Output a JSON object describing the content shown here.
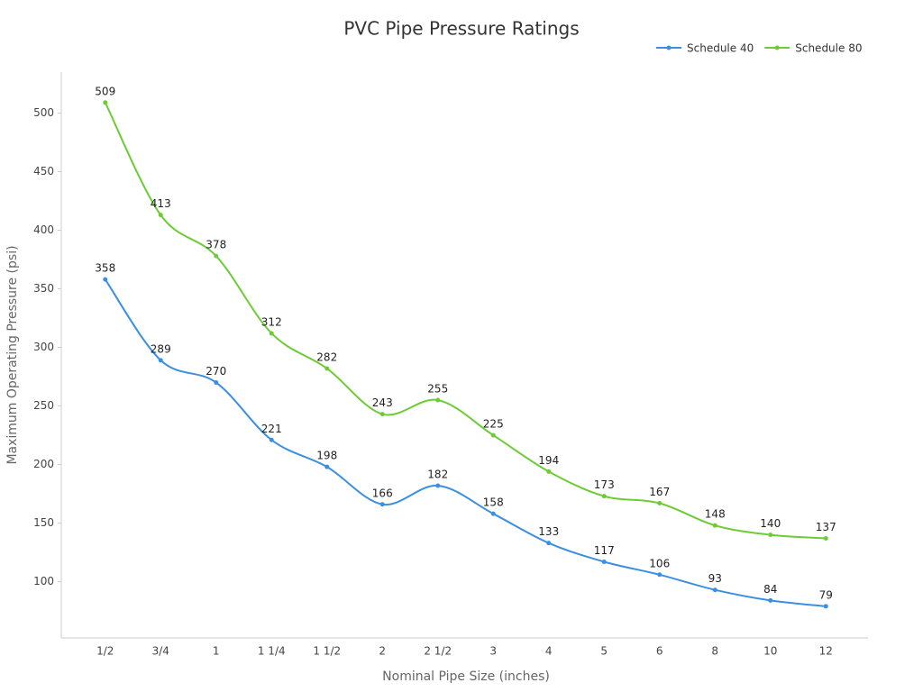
{
  "chart_data": {
    "type": "line",
    "title": "PVC Pipe Pressure Ratings",
    "x_label": "Nominal Pipe Size (inches)",
    "y_label": "Maximum Operating Pressure (psi)",
    "categories": [
      "1/2",
      "3/4",
      "1",
      "1 1/4",
      "1 1/2",
      "2",
      "2 1/2",
      "3",
      "4",
      "5",
      "6",
      "8",
      "10",
      "12"
    ],
    "series": [
      {
        "name": "Schedule 40",
        "color": "#3b8fe3",
        "values": [
          358,
          289,
          270,
          221,
          198,
          166,
          182,
          158,
          133,
          117,
          106,
          93,
          84,
          79
        ]
      },
      {
        "name": "Schedule 80",
        "color": "#6dcc35",
        "values": [
          509,
          413,
          378,
          312,
          282,
          243,
          255,
          225,
          194,
          173,
          167,
          148,
          140,
          137
        ]
      }
    ],
    "ylim": [
      52,
      535
    ],
    "yticks": [
      100,
      150,
      200,
      250,
      300,
      350,
      400,
      450,
      500
    ],
    "grid": false,
    "legend": "top-right",
    "smooth": true
  }
}
